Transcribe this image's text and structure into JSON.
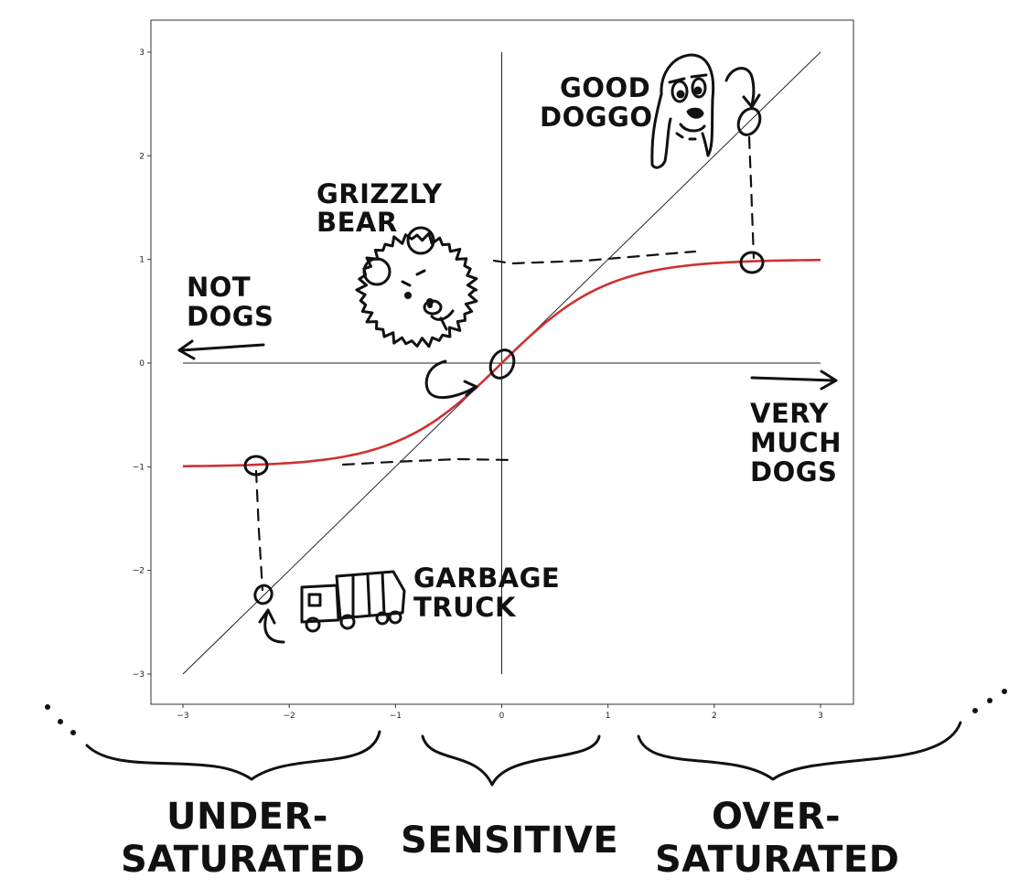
{
  "chart_data": {
    "type": "line",
    "xlim": [
      -3.3,
      3.3
    ],
    "ylim": [
      -3.3,
      3.3
    ],
    "x_ticks": [
      -3,
      -2,
      -1,
      0,
      1,
      2,
      3
    ],
    "y_ticks": [
      -3,
      -2,
      -1,
      0,
      1,
      2,
      3
    ],
    "x_tick_labels": [
      "−3",
      "−2",
      "−1",
      "0",
      "1",
      "2",
      "3"
    ],
    "y_tick_labels": [
      "−3",
      "−2",
      "−1",
      "0",
      "1",
      "2",
      "3"
    ],
    "grid": false,
    "series": [
      {
        "function": "identity",
        "color": "#222222",
        "x": [
          -3,
          -2,
          -1,
          0,
          1,
          2,
          3
        ],
        "y": [
          -3,
          -2,
          -1,
          0,
          1,
          2,
          3
        ]
      },
      {
        "function": "tanh",
        "color": "#d03030",
        "x": [
          -3,
          -2.5,
          -2,
          -1.5,
          -1,
          -0.5,
          0,
          0.5,
          1,
          1.5,
          2,
          2.5,
          3
        ],
        "y": [
          -0.995,
          -0.987,
          -0.964,
          -0.905,
          -0.762,
          -0.462,
          0,
          0.462,
          0.762,
          0.905,
          0.964,
          0.987,
          0.995
        ]
      }
    ],
    "annotations": [
      {
        "text": "GOOD\nDOGGO",
        "x": 2.35,
        "y": 2.35,
        "tanh_value": 0.98
      },
      {
        "text": "GRIZZLY\nBEAR",
        "x": 0.0,
        "y": 0.0
      },
      {
        "text": "GARBAGE\nTRUCK",
        "x": -2.3,
        "y": -2.3,
        "tanh_value": -0.98
      },
      {
        "text": "NOT\nDOGS",
        "direction": "left"
      },
      {
        "text": "VERY\nMUCH\nDOGS",
        "direction": "right"
      }
    ],
    "regions": [
      "UNDER-\nSATURATED",
      "SENSITIVE",
      "OVER-\nSATURATED"
    ]
  },
  "labels": {
    "good_doggo": [
      "GOOD",
      "DOGGO"
    ],
    "grizzly_bear": [
      "GRIZZLY",
      "BEAR"
    ],
    "not_dogs": [
      "NOT",
      "DOGS"
    ],
    "very_much_dogs": [
      "VERY",
      "MUCH",
      "DOGS"
    ],
    "garbage_truck": [
      "GARBAGE",
      "TRUCK"
    ],
    "under_saturated": [
      "UNDER-",
      "SATURATED"
    ],
    "sensitive": "SENSITIVE",
    "over_saturated": [
      "OVER-",
      "SATURATED"
    ]
  },
  "icons": {
    "dog": "dog-icon",
    "bear": "bear-icon",
    "truck": "garbage-truck-icon",
    "brace": "curly-brace-icon"
  },
  "colors": {
    "tanh": "#d03030",
    "identity": "#222222",
    "ink": "#111111"
  }
}
